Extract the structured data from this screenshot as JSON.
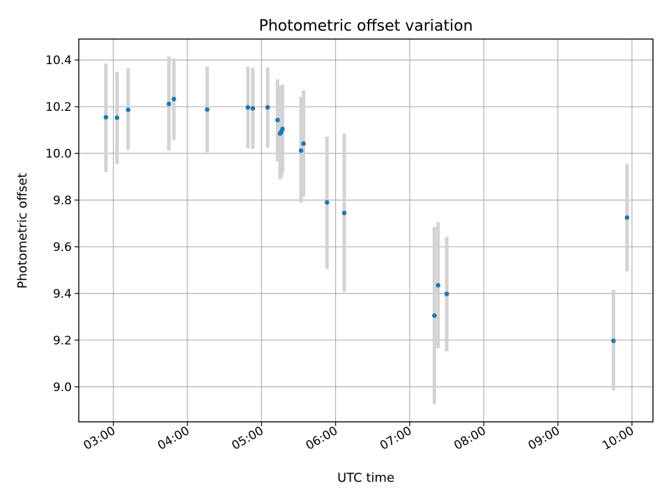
{
  "chart_data": {
    "type": "scatter",
    "title": "Photometric offset variation",
    "xlabel": "UTC time",
    "ylabel": "Photometric offset",
    "x_range": [
      "02:32",
      "10:17"
    ],
    "ylim": [
      8.85,
      10.49
    ],
    "grid": true,
    "x_ticks": [
      "03:00",
      "04:00",
      "05:00",
      "06:00",
      "07:00",
      "08:00",
      "09:00",
      "10:00"
    ],
    "y_ticks": [
      "9.0",
      "9.2",
      "9.4",
      "9.6",
      "9.8",
      "10.0",
      "10.2",
      "10.4"
    ],
    "colors": {
      "point": "#1f77b4",
      "errorbar": "#d3d3d3",
      "grid": "#b0b0b0"
    },
    "points": [
      {
        "x": "02:54",
        "y": 10.155,
        "ylo": 9.92,
        "yhi": 10.385
      },
      {
        "x": "03:03",
        "y": 10.153,
        "ylo": 9.955,
        "yhi": 10.35
      },
      {
        "x": "03:12",
        "y": 10.187,
        "ylo": 10.015,
        "yhi": 10.365
      },
      {
        "x": "03:45",
        "y": 10.212,
        "ylo": 10.012,
        "yhi": 10.415
      },
      {
        "x": "03:49",
        "y": 10.233,
        "ylo": 10.058,
        "yhi": 10.407
      },
      {
        "x": "04:16",
        "y": 10.188,
        "ylo": 10.005,
        "yhi": 10.372
      },
      {
        "x": "04:49",
        "y": 10.197,
        "ylo": 10.022,
        "yhi": 10.372
      },
      {
        "x": "04:53",
        "y": 10.193,
        "ylo": 10.02,
        "yhi": 10.368
      },
      {
        "x": "05:05",
        "y": 10.197,
        "ylo": 10.025,
        "yhi": 10.368
      },
      {
        "x": "05:13",
        "y": 10.143,
        "ylo": 9.965,
        "yhi": 10.318
      },
      {
        "x": "05:15",
        "y": 10.085,
        "ylo": 9.888,
        "yhi": 10.285
      },
      {
        "x": "05:16",
        "y": 10.092,
        "ylo": 9.895,
        "yhi": 10.29
      },
      {
        "x": "05:17",
        "y": 10.105,
        "ylo": 9.915,
        "yhi": 10.295
      },
      {
        "x": "05:32",
        "y": 10.012,
        "ylo": 9.788,
        "yhi": 10.242
      },
      {
        "x": "05:34",
        "y": 10.042,
        "ylo": 9.815,
        "yhi": 10.27
      },
      {
        "x": "05:53",
        "y": 9.79,
        "ylo": 9.505,
        "yhi": 10.072
      },
      {
        "x": "06:07",
        "y": 9.745,
        "ylo": 9.408,
        "yhi": 10.085
      },
      {
        "x": "07:20",
        "y": 9.305,
        "ylo": 8.925,
        "yhi": 9.685
      },
      {
        "x": "07:23",
        "y": 9.435,
        "ylo": 9.165,
        "yhi": 9.705
      },
      {
        "x": "07:30",
        "y": 9.398,
        "ylo": 9.152,
        "yhi": 9.642
      },
      {
        "x": "09:45",
        "y": 9.197,
        "ylo": 8.985,
        "yhi": 9.415
      },
      {
        "x": "09:56",
        "y": 9.725,
        "ylo": 9.495,
        "yhi": 9.955
      }
    ]
  }
}
